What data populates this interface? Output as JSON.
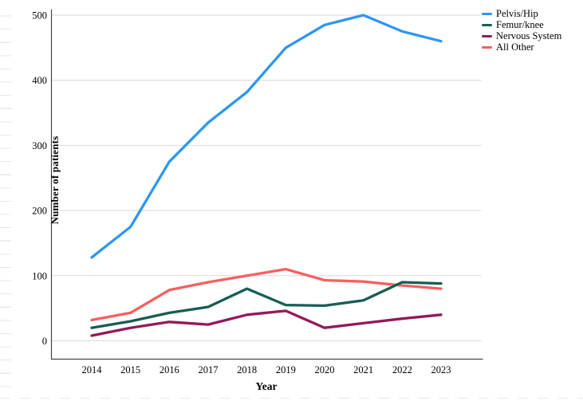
{
  "chart_data": {
    "type": "line",
    "title": "",
    "xlabel": "Year",
    "ylabel": "Number of patients",
    "categories": [
      "2014",
      "2015",
      "2016",
      "2017",
      "2018",
      "2019",
      "2020",
      "2021",
      "2022",
      "2023"
    ],
    "series": [
      {
        "name": "Pelvis/Hip",
        "color": "#2e96f2",
        "values": [
          128,
          175,
          275,
          335,
          382,
          450,
          485,
          500,
          475,
          460
        ]
      },
      {
        "name": "Femur/knee",
        "color": "#175d53",
        "values": [
          20,
          30,
          43,
          52,
          80,
          55,
          54,
          62,
          90,
          88
        ]
      },
      {
        "name": "Nervous System",
        "color": "#94195a",
        "values": [
          8,
          20,
          29,
          25,
          40,
          46,
          20,
          27,
          34,
          40
        ]
      },
      {
        "name": "All Other",
        "color": "#f75f60",
        "values": [
          32,
          43,
          78,
          90,
          100,
          110,
          93,
          91,
          85,
          80
        ]
      }
    ],
    "ylim": [
      0,
      500
    ],
    "yticks": [
      0,
      100,
      200,
      300,
      400,
      500
    ],
    "grid": true,
    "grid_color": "#d9d9d9",
    "axis_color": "#454545",
    "legend_position": "top-right"
  }
}
